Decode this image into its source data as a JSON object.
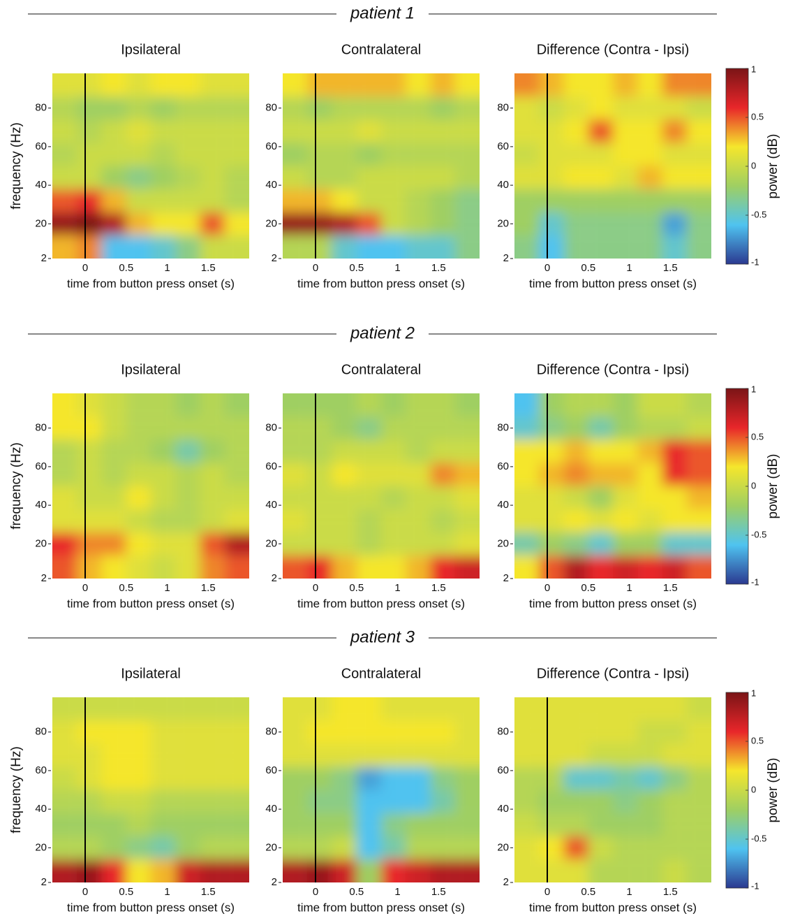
{
  "sections": [
    {
      "title": "patient 1"
    },
    {
      "title": "patient 2"
    },
    {
      "title": "patient 3"
    }
  ],
  "colorscale": [
    "#2b3990",
    "#4fc3f0",
    "#9fcf62",
    "#f5e62c",
    "#e8262a",
    "#7a1416"
  ],
  "chart_data": [
    {
      "type": "heatmap",
      "title": "Ipsilateral",
      "xlabel": "time from button press onset (s)",
      "ylabel": "frequency (Hz)",
      "x": [
        -0.25,
        0.05,
        0.35,
        0.65,
        0.95,
        1.25,
        1.55,
        1.85
      ],
      "y": [
        8,
        20,
        32,
        44,
        56,
        68,
        80,
        92
      ],
      "xlim": [
        -0.4,
        2.0
      ],
      "ylim": [
        2,
        98
      ],
      "zlim": [
        -1,
        1
      ],
      "xticks": [
        0,
        0.5,
        1,
        1.5
      ],
      "yticks": [
        2,
        20,
        40,
        60,
        80
      ],
      "vline": 0,
      "z": [
        [
          0.3,
          0.4,
          -0.6,
          -0.6,
          -0.5,
          -0.3,
          0.0,
          0.0
        ],
        [
          0.9,
          1.0,
          0.8,
          0.3,
          0.2,
          0.2,
          0.5,
          0.2
        ],
        [
          0.5,
          0.6,
          0.3,
          0.0,
          0.0,
          0.0,
          0.0,
          -0.1
        ],
        [
          0.0,
          0.0,
          -0.2,
          -0.3,
          -0.2,
          -0.1,
          0.0,
          -0.1
        ],
        [
          -0.1,
          0.0,
          0.0,
          0.0,
          -0.1,
          0.0,
          0.0,
          0.0
        ],
        [
          0.0,
          -0.1,
          0.0,
          0.1,
          0.0,
          0.0,
          0.0,
          0.0
        ],
        [
          -0.1,
          -0.2,
          -0.2,
          -0.1,
          -0.2,
          -0.1,
          -0.1,
          -0.1
        ],
        [
          0.1,
          0.1,
          0.2,
          0.1,
          0.2,
          0.2,
          0.1,
          0.1
        ]
      ]
    },
    {
      "type": "heatmap",
      "title": "Contralateral",
      "xlabel": "time from button press onset (s)",
      "x": [
        -0.25,
        0.05,
        0.35,
        0.65,
        0.95,
        1.25,
        1.55,
        1.85
      ],
      "y": [
        8,
        20,
        32,
        44,
        56,
        68,
        80,
        92
      ],
      "xlim": [
        -0.4,
        2.0
      ],
      "ylim": [
        2,
        98
      ],
      "zlim": [
        -1,
        1
      ],
      "xticks": [
        0,
        0.5,
        1,
        1.5
      ],
      "yticks": [
        2,
        20,
        40,
        60,
        80
      ],
      "vline": 0,
      "z": [
        [
          -0.1,
          -0.1,
          -0.5,
          -0.6,
          -0.6,
          -0.5,
          -0.5,
          -0.3
        ],
        [
          0.9,
          0.9,
          0.8,
          0.5,
          0.0,
          -0.1,
          -0.2,
          -0.3
        ],
        [
          0.3,
          0.3,
          0.2,
          0.0,
          0.0,
          -0.1,
          -0.2,
          -0.3
        ],
        [
          0.0,
          -0.1,
          -0.1,
          0.0,
          0.0,
          0.0,
          0.0,
          -0.1
        ],
        [
          -0.2,
          -0.1,
          -0.1,
          -0.2,
          -0.1,
          -0.1,
          -0.1,
          -0.1
        ],
        [
          0.0,
          0.0,
          0.0,
          0.1,
          0.0,
          0.0,
          0.0,
          0.0
        ],
        [
          -0.1,
          -0.2,
          -0.1,
          -0.1,
          -0.1,
          -0.1,
          -0.2,
          -0.1
        ],
        [
          0.2,
          0.3,
          0.3,
          0.3,
          0.3,
          0.2,
          0.3,
          0.2
        ]
      ]
    },
    {
      "type": "heatmap",
      "title": "Difference (Contra - Ipsi)",
      "xlabel": "time from button press onset (s)",
      "x": [
        -0.25,
        0.05,
        0.35,
        0.65,
        0.95,
        1.25,
        1.55,
        1.85
      ],
      "y": [
        8,
        20,
        32,
        44,
        56,
        68,
        80,
        92
      ],
      "xlim": [
        -0.4,
        2.0
      ],
      "ylim": [
        2,
        98
      ],
      "zlim": [
        -1,
        1
      ],
      "xticks": [
        0,
        0.5,
        1,
        1.5
      ],
      "yticks": [
        2,
        20,
        40,
        60,
        80
      ],
      "vline": 0,
      "colorbar": {
        "label": "power (dB)",
        "ticks": [
          -1,
          -0.5,
          0,
          0.5,
          1
        ]
      },
      "z": [
        [
          -0.3,
          -0.6,
          -0.3,
          -0.3,
          -0.3,
          -0.3,
          -0.5,
          -0.3
        ],
        [
          -0.2,
          -0.5,
          -0.3,
          -0.3,
          -0.3,
          -0.3,
          -0.7,
          -0.3
        ],
        [
          -0.2,
          -0.2,
          -0.2,
          -0.2,
          -0.2,
          -0.2,
          -0.2,
          -0.2
        ],
        [
          0.1,
          0.1,
          0.2,
          0.2,
          0.1,
          0.3,
          0.2,
          0.2
        ],
        [
          0.0,
          0.1,
          0.1,
          0.1,
          0.2,
          0.2,
          0.1,
          0.1
        ],
        [
          0.1,
          0.1,
          0.2,
          0.5,
          0.2,
          0.2,
          0.4,
          0.2
        ],
        [
          0.1,
          0.0,
          0.1,
          0.2,
          0.1,
          0.1,
          0.1,
          0.0
        ],
        [
          0.4,
          0.3,
          0.2,
          0.2,
          0.3,
          0.2,
          0.4,
          0.4
        ]
      ]
    },
    {
      "type": "heatmap",
      "title": "Ipsilateral",
      "xlabel": "time from button press onset (s)",
      "ylabel": "frequency (Hz)",
      "x": [
        -0.25,
        0.05,
        0.35,
        0.65,
        0.95,
        1.25,
        1.55,
        1.85
      ],
      "y": [
        8,
        20,
        32,
        44,
        56,
        68,
        80,
        92
      ],
      "xlim": [
        -0.4,
        2.0
      ],
      "ylim": [
        2,
        98
      ],
      "zlim": [
        -1,
        1
      ],
      "xticks": [
        0,
        0.5,
        1,
        1.5
      ],
      "yticks": [
        2,
        20,
        40,
        60,
        80
      ],
      "vline": 0,
      "z": [
        [
          0.5,
          0.3,
          0.2,
          0.1,
          0.0,
          0.1,
          0.4,
          0.5
        ],
        [
          0.6,
          0.4,
          0.4,
          0.2,
          0.1,
          0.1,
          0.5,
          0.8
        ],
        [
          0.1,
          0.1,
          0.1,
          0.0,
          -0.1,
          -0.1,
          0.0,
          0.1
        ],
        [
          0.1,
          0.0,
          0.0,
          0.2,
          0.0,
          -0.1,
          0.0,
          0.0
        ],
        [
          -0.1,
          0.0,
          -0.1,
          0.0,
          0.0,
          -0.1,
          0.0,
          -0.1
        ],
        [
          -0.1,
          0.0,
          -0.1,
          -0.1,
          -0.2,
          -0.4,
          -0.2,
          -0.1
        ],
        [
          0.2,
          0.2,
          0.0,
          -0.1,
          -0.1,
          -0.1,
          -0.1,
          -0.1
        ],
        [
          0.2,
          0.1,
          0.0,
          -0.1,
          -0.1,
          -0.2,
          -0.1,
          -0.2
        ]
      ]
    },
    {
      "type": "heatmap",
      "title": "Contralateral",
      "xlabel": "time from button press onset (s)",
      "x": [
        -0.25,
        0.05,
        0.35,
        0.65,
        0.95,
        1.25,
        1.55,
        1.85
      ],
      "y": [
        8,
        20,
        32,
        44,
        56,
        68,
        80,
        92
      ],
      "xlim": [
        -0.4,
        2.0
      ],
      "ylim": [
        2,
        98
      ],
      "zlim": [
        -1,
        1
      ],
      "xticks": [
        0,
        0.5,
        1,
        1.5
      ],
      "yticks": [
        2,
        20,
        40,
        60,
        80
      ],
      "vline": 0,
      "z": [
        [
          0.5,
          0.6,
          0.3,
          0.2,
          0.2,
          0.3,
          0.6,
          0.7
        ],
        [
          0.0,
          0.0,
          0.0,
          -0.1,
          0.0,
          0.0,
          0.0,
          0.1
        ],
        [
          0.1,
          0.0,
          0.0,
          -0.1,
          0.0,
          0.0,
          -0.1,
          0.0
        ],
        [
          0.0,
          0.0,
          0.0,
          0.0,
          -0.1,
          0.0,
          0.0,
          0.1
        ],
        [
          0.1,
          0.0,
          0.2,
          0.1,
          0.1,
          0.1,
          0.4,
          0.3
        ],
        [
          -0.1,
          -0.1,
          0.0,
          0.0,
          0.0,
          -0.1,
          0.0,
          0.0
        ],
        [
          -0.1,
          -0.1,
          -0.2,
          -0.3,
          -0.1,
          -0.1,
          -0.1,
          -0.1
        ],
        [
          -0.2,
          -0.2,
          -0.2,
          -0.1,
          -0.2,
          -0.1,
          -0.1,
          -0.2
        ]
      ]
    },
    {
      "type": "heatmap",
      "title": "Difference (Contra - Ipsi)",
      "xlabel": "time from button press onset (s)",
      "x": [
        -0.25,
        0.05,
        0.35,
        0.65,
        0.95,
        1.25,
        1.55,
        1.85
      ],
      "y": [
        8,
        20,
        32,
        44,
        56,
        68,
        80,
        92
      ],
      "xlim": [
        -0.4,
        2.0
      ],
      "ylim": [
        2,
        98
      ],
      "zlim": [
        -1,
        1
      ],
      "xticks": [
        0,
        0.5,
        1,
        1.5
      ],
      "yticks": [
        2,
        20,
        40,
        60,
        80
      ],
      "vline": 0,
      "colorbar": {
        "label": "power (dB)",
        "ticks": [
          -1,
          -0.5,
          0,
          0.5,
          1
        ]
      },
      "z": [
        [
          0.2,
          0.5,
          0.8,
          0.6,
          0.7,
          0.6,
          0.7,
          0.5
        ],
        [
          -0.4,
          -0.2,
          -0.3,
          -0.5,
          -0.2,
          -0.2,
          -0.5,
          -0.5
        ],
        [
          0.1,
          0.1,
          0.2,
          0.1,
          0.2,
          0.1,
          0.2,
          0.2
        ],
        [
          0.1,
          0.1,
          0.0,
          -0.2,
          0.1,
          0.2,
          0.2,
          0.3
        ],
        [
          0.2,
          0.3,
          0.4,
          0.3,
          0.3,
          0.2,
          0.6,
          0.5
        ],
        [
          0.2,
          0.2,
          0.3,
          0.2,
          0.2,
          0.3,
          0.6,
          0.5
        ],
        [
          -0.5,
          -0.3,
          -0.2,
          -0.4,
          -0.2,
          -0.1,
          -0.1,
          0.0
        ],
        [
          -0.6,
          -0.2,
          -0.1,
          -0.1,
          -0.2,
          0.0,
          0.0,
          -0.1
        ]
      ]
    },
    {
      "type": "heatmap",
      "title": "Ipsilateral",
      "xlabel": "time from button press onset (s)",
      "ylabel": "frequency (Hz)",
      "x": [
        -0.25,
        0.05,
        0.35,
        0.65,
        0.95,
        1.25,
        1.55,
        1.85
      ],
      "y": [
        8,
        20,
        32,
        44,
        56,
        68,
        80,
        92
      ],
      "xlim": [
        -0.4,
        2.0
      ],
      "ylim": [
        2,
        98
      ],
      "zlim": [
        -1,
        1
      ],
      "xticks": [
        0,
        0.5,
        1,
        1.5
      ],
      "yticks": [
        2,
        20,
        40,
        60,
        80
      ],
      "vline": 0,
      "z": [
        [
          0.8,
          0.9,
          0.6,
          0.2,
          0.3,
          0.7,
          0.8,
          0.8
        ],
        [
          -0.1,
          -0.1,
          -0.2,
          -0.3,
          -0.4,
          -0.2,
          -0.1,
          -0.1
        ],
        [
          -0.2,
          -0.2,
          -0.2,
          -0.1,
          -0.2,
          -0.2,
          -0.2,
          -0.2
        ],
        [
          -0.1,
          -0.1,
          0.0,
          0.0,
          -0.1,
          -0.1,
          -0.1,
          -0.1
        ],
        [
          0.0,
          0.1,
          0.2,
          0.2,
          0.1,
          0.1,
          0.1,
          0.1
        ],
        [
          0.1,
          0.1,
          0.2,
          0.2,
          0.1,
          0.1,
          0.1,
          0.1
        ],
        [
          0.1,
          0.2,
          0.2,
          0.2,
          0.1,
          0.1,
          0.1,
          0.1
        ],
        [
          0.0,
          0.0,
          0.0,
          0.0,
          0.0,
          0.0,
          0.0,
          0.0
        ]
      ]
    },
    {
      "type": "heatmap",
      "title": "Contralateral",
      "xlabel": "time from button press onset (s)",
      "x": [
        -0.25,
        0.05,
        0.35,
        0.65,
        0.95,
        1.25,
        1.55,
        1.85
      ],
      "y": [
        8,
        20,
        32,
        44,
        56,
        68,
        80,
        92
      ],
      "xlim": [
        -0.4,
        2.0
      ],
      "ylim": [
        2,
        98
      ],
      "zlim": [
        -1,
        1
      ],
      "xticks": [
        0,
        0.5,
        1,
        1.5
      ],
      "yticks": [
        2,
        20,
        40,
        60,
        80
      ],
      "vline": 0,
      "z": [
        [
          0.8,
          0.9,
          0.7,
          -0.2,
          0.6,
          0.7,
          0.8,
          0.8
        ],
        [
          -0.1,
          -0.1,
          0.0,
          -0.6,
          -0.4,
          -0.1,
          -0.1,
          -0.1
        ],
        [
          -0.2,
          -0.2,
          -0.2,
          -0.6,
          -0.3,
          -0.2,
          -0.2,
          -0.2
        ],
        [
          -0.2,
          -0.3,
          -0.3,
          -0.6,
          -0.6,
          -0.6,
          -0.4,
          -0.2
        ],
        [
          -0.2,
          -0.2,
          -0.3,
          -0.7,
          -0.6,
          -0.6,
          -0.3,
          -0.2
        ],
        [
          0.1,
          0.1,
          0.1,
          0.1,
          0.1,
          0.1,
          0.1,
          0.1
        ],
        [
          0.1,
          0.2,
          0.2,
          0.2,
          0.2,
          0.2,
          0.2,
          0.1
        ],
        [
          0.1,
          0.1,
          0.2,
          0.2,
          0.1,
          0.1,
          0.1,
          0.1
        ]
      ]
    },
    {
      "type": "heatmap",
      "title": "Difference (Contra - Ipsi)",
      "xlabel": "time from button press onset (s)",
      "x": [
        -0.25,
        0.05,
        0.35,
        0.65,
        0.95,
        1.25,
        1.55,
        1.85
      ],
      "y": [
        8,
        20,
        32,
        44,
        56,
        68,
        80,
        92
      ],
      "xlim": [
        -0.4,
        2.0
      ],
      "ylim": [
        2,
        98
      ],
      "zlim": [
        -1,
        1
      ],
      "xticks": [
        0,
        0.5,
        1,
        1.5
      ],
      "yticks": [
        2,
        20,
        40,
        60,
        80
      ],
      "vline": 0,
      "colorbar": {
        "label": "power (dB)",
        "ticks": [
          -1,
          -0.5,
          0,
          0.5,
          1
        ]
      },
      "z": [
        [
          0.1,
          0.1,
          0.1,
          -0.1,
          -0.1,
          -0.1,
          0.0,
          -0.1
        ],
        [
          0.1,
          0.2,
          0.5,
          0.0,
          -0.1,
          -0.1,
          -0.1,
          -0.1
        ],
        [
          0.0,
          -0.1,
          -0.1,
          -0.2,
          -0.2,
          -0.2,
          -0.1,
          -0.1
        ],
        [
          -0.1,
          -0.2,
          -0.2,
          -0.2,
          -0.3,
          -0.2,
          -0.1,
          -0.1
        ],
        [
          -0.1,
          -0.1,
          -0.5,
          -0.5,
          -0.4,
          -0.5,
          -0.3,
          -0.1
        ],
        [
          0.1,
          0.1,
          0.1,
          0.0,
          0.0,
          0.0,
          0.1,
          0.1
        ],
        [
          0.1,
          0.1,
          0.1,
          0.1,
          0.1,
          0.0,
          0.0,
          0.1
        ],
        [
          0.1,
          0.1,
          0.1,
          0.1,
          0.1,
          0.1,
          0.1,
          0.0
        ]
      ]
    }
  ]
}
